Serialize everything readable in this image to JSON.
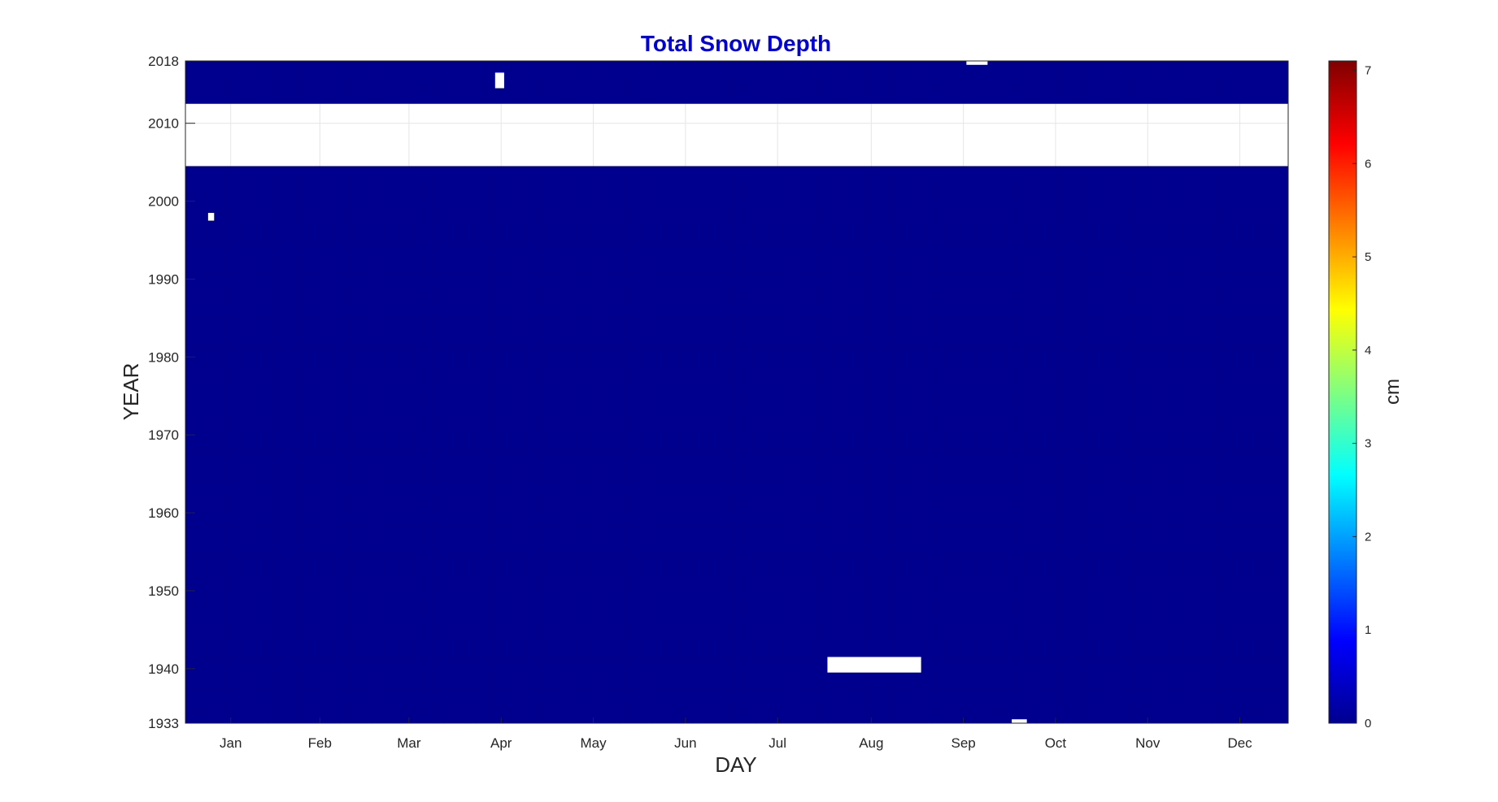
{
  "chart_data": {
    "type": "heatmap",
    "title": "Total Snow Depth",
    "xlabel": "DAY",
    "ylabel": "YEAR",
    "x_tick_labels": [
      "Jan",
      "Feb",
      "Mar",
      "Apr",
      "May",
      "Jun",
      "Jul",
      "Aug",
      "Sep",
      "Oct",
      "Nov",
      "Dec"
    ],
    "y_ticks": [
      1933,
      1940,
      1950,
      1960,
      1970,
      1980,
      1990,
      2000,
      2010,
      2018
    ],
    "ylim": [
      1933,
      2018
    ],
    "xlim": [
      1,
      366
    ],
    "fill_value": 0,
    "missing_data": [
      {
        "years": [
          2005,
          2012
        ],
        "days": [
          1,
          366
        ]
      },
      {
        "years": [
          1998,
          1998
        ],
        "days": [
          9,
          10
        ]
      },
      {
        "years": [
          2015,
          2016
        ],
        "days": [
          104,
          106
        ]
      },
      {
        "years": [
          2018,
          2018
        ],
        "days": [
          260,
          266
        ]
      },
      {
        "years": [
          1940,
          1941
        ],
        "days": [
          214,
          244
        ]
      },
      {
        "years": [
          1933,
          1933
        ],
        "days": [
          275,
          279
        ]
      }
    ],
    "colorbar": {
      "label": "cm",
      "min": 0,
      "max": 7.1,
      "ticks": [
        0,
        1,
        2,
        3,
        4,
        5,
        6,
        7
      ],
      "colormap": "jet"
    },
    "colors": {
      "title": "#0000d8",
      "zero_value": "#00008f",
      "missing": "#ffffff"
    }
  }
}
